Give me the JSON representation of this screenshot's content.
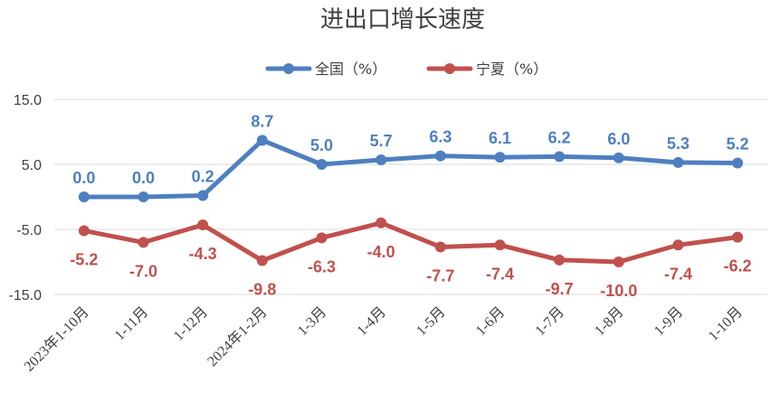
{
  "chart_data": {
    "type": "line",
    "title": "进出口增长速度",
    "categories": [
      "2023年1-10月",
      "1-11月",
      "1-12月",
      "2024年1-2月",
      "1-3月",
      "1-4月",
      "1-5月",
      "1-6月",
      "1-7月",
      "1-8月",
      "1-9月",
      "1-10月"
    ],
    "series": [
      {
        "name": "全国（%）",
        "color": "#4e7fc0",
        "label_color": "#4e7fc0",
        "values": [
          0.0,
          0.0,
          0.2,
          8.7,
          5.0,
          5.7,
          6.3,
          6.1,
          6.2,
          6.0,
          5.3,
          5.2
        ]
      },
      {
        "name": "宁夏（%）",
        "color": "#c0504d",
        "label_color": "#c0504d",
        "values": [
          -5.2,
          -7.0,
          -4.3,
          -9.8,
          -6.3,
          -4.0,
          -7.7,
          -7.4,
          -9.7,
          -10.0,
          -7.4,
          -6.2
        ]
      }
    ],
    "yticks": [
      "15.0",
      "5.0",
      "-5.0",
      "-15.0"
    ],
    "ytick_values": [
      15,
      5,
      -5,
      -15
    ],
    "ylim": [
      -15,
      15
    ],
    "grid": true,
    "legend_position": "top-center",
    "xlabel": "",
    "ylabel": ""
  }
}
